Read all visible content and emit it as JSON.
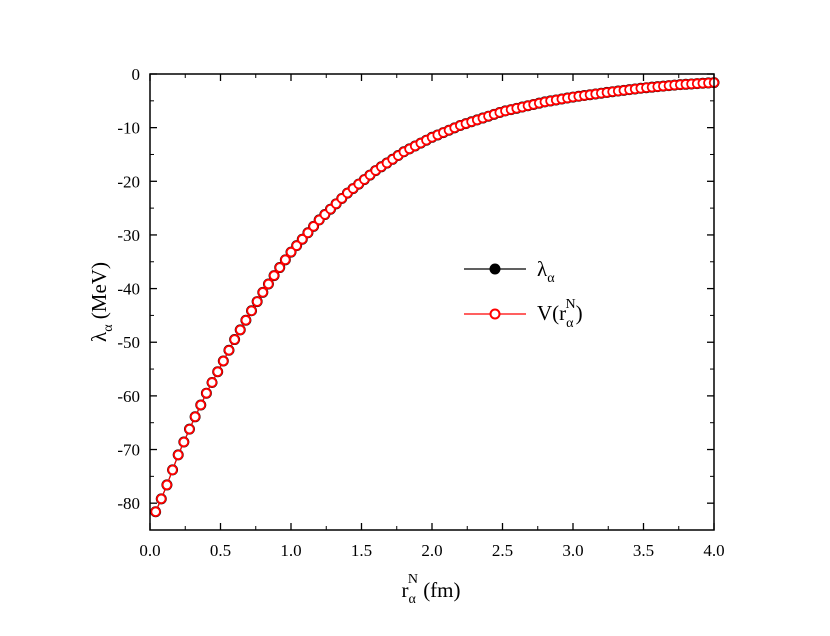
{
  "chart_data": {
    "type": "scatter",
    "x_axis": {
      "label_base": "r",
      "label_sub": "α",
      "label_sup": "N",
      "label_unit": " (fm)",
      "range": [
        0,
        4.0
      ],
      "ticks": [
        0.0,
        0.5,
        1.0,
        1.5,
        2.0,
        2.5,
        3.0,
        3.5,
        4.0
      ],
      "tick_labels": [
        "0.0",
        "0.5",
        "1.0",
        "1.5",
        "2.0",
        "2.5",
        "3.0",
        "3.5",
        "4.0"
      ]
    },
    "y_axis": {
      "label_base": "λ",
      "label_sub": "α",
      "label_unit": " (MeV)",
      "range": [
        -85,
        0
      ],
      "ticks": [
        0,
        -10,
        -20,
        -30,
        -40,
        -50,
        -60,
        -70,
        -80
      ],
      "tick_labels": [
        "0",
        "-10",
        "-20",
        "-30",
        "-40",
        "-50",
        "-60",
        "-70",
        "-80"
      ]
    },
    "grid": false,
    "legend_position": "center-right",
    "curve": {
      "x_start": 0.04,
      "x_end": 4.0,
      "point_count": 100
    },
    "series": [
      {
        "legend_base": "λ",
        "legend_sub": "α",
        "marker": "filled-circle",
        "color": "#000000",
        "line_color": "#000000"
      },
      {
        "legend_base": "V(r",
        "legend_sub": "α",
        "legend_sup": "N",
        "legend_tail": ")",
        "marker": "open-circle",
        "color": "#ff0000",
        "line_color": "#ff0000"
      }
    ]
  }
}
